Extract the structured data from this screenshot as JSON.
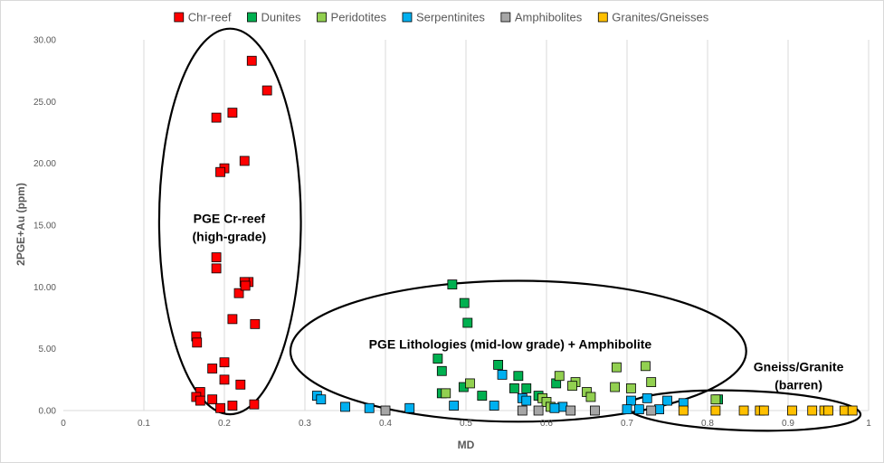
{
  "chart_data": {
    "type": "scatter",
    "title": "",
    "xlabel": "MD",
    "ylabel": "2PGE+Au (ppm)",
    "xlim": [
      0,
      1
    ],
    "ylim": [
      0,
      30
    ],
    "x_ticks": [
      "0",
      "0.1",
      "0.2",
      "0.3",
      "0.4",
      "0.5",
      "0.6",
      "0.7",
      "0.8",
      "0.9",
      "1"
    ],
    "y_ticks": [
      "0.00",
      "5.00",
      "10.00",
      "15.00",
      "20.00",
      "25.00",
      "30.00"
    ],
    "grid": "vertical",
    "legend_position": "top",
    "marker": "square",
    "series": [
      {
        "name": "Chr-reef",
        "color": "#ff0000",
        "x": [
          0.234,
          0.253,
          0.21,
          0.19,
          0.225,
          0.2,
          0.195,
          0.19,
          0.19,
          0.23,
          0.225,
          0.218,
          0.226,
          0.21,
          0.238,
          0.165,
          0.166,
          0.2,
          0.185,
          0.2,
          0.22,
          0.17,
          0.165,
          0.17,
          0.185,
          0.195,
          0.21,
          0.237
        ],
        "y": [
          28.3,
          25.9,
          24.1,
          23.7,
          20.2,
          19.6,
          19.3,
          12.4,
          11.5,
          10.4,
          10.4,
          9.5,
          10.1,
          7.4,
          7.0,
          6.0,
          5.5,
          3.9,
          3.4,
          2.5,
          2.1,
          1.5,
          1.1,
          0.8,
          0.9,
          0.2,
          0.4,
          0.5
        ]
      },
      {
        "name": "Dunites",
        "color": "#00b050",
        "x": [
          0.483,
          0.498,
          0.502,
          0.465,
          0.47,
          0.54,
          0.565,
          0.497,
          0.56,
          0.575,
          0.47,
          0.52,
          0.59,
          0.612,
          0.813
        ],
        "y": [
          10.2,
          8.7,
          7.1,
          4.2,
          3.2,
          3.7,
          2.8,
          1.9,
          1.8,
          1.8,
          1.4,
          1.2,
          1.2,
          2.2,
          0.9
        ]
      },
      {
        "name": "Peridotites",
        "color": "#92d050",
        "x": [
          0.687,
          0.723,
          0.616,
          0.73,
          0.636,
          0.505,
          0.632,
          0.705,
          0.685,
          0.65,
          0.655,
          0.475,
          0.595,
          0.6,
          0.605,
          0.81
        ],
        "y": [
          3.5,
          3.6,
          2.8,
          2.3,
          2.3,
          2.2,
          2.0,
          1.8,
          1.9,
          1.5,
          1.1,
          1.4,
          1.0,
          0.7,
          0.3,
          0.9
        ]
      },
      {
        "name": "Serpentinites",
        "color": "#00b0f0",
        "x": [
          0.315,
          0.32,
          0.35,
          0.38,
          0.43,
          0.485,
          0.535,
          0.545,
          0.57,
          0.575,
          0.62,
          0.705,
          0.725,
          0.75,
          0.77,
          0.61,
          0.7,
          0.715,
          0.74
        ],
        "y": [
          1.2,
          0.9,
          0.3,
          0.2,
          0.2,
          0.4,
          0.4,
          2.9,
          1.0,
          0.8,
          0.3,
          0.8,
          1.0,
          0.8,
          0.6,
          0.2,
          0.1,
          0.1,
          0.1
        ]
      },
      {
        "name": "Amphibolites",
        "color": "#a6a6a6",
        "x": [
          0.4,
          0.57,
          0.59,
          0.63,
          0.66,
          0.73
        ],
        "y": [
          0.0,
          0.0,
          0.0,
          0.0,
          0.0,
          0.0
        ]
      },
      {
        "name": "Granites/Gneisses",
        "color": "#ffc000",
        "x": [
          0.77,
          0.81,
          0.845,
          0.865,
          0.87,
          0.905,
          0.93,
          0.945,
          0.95,
          0.97,
          0.98
        ],
        "y": [
          0.0,
          0.0,
          0.0,
          0.0,
          0.0,
          0.0,
          0.0,
          0.0,
          0.0,
          0.0,
          0.0
        ]
      }
    ],
    "annotations": [
      {
        "text": [
          "PGE Cr-reef",
          "(high-grade)"
        ],
        "x": 0.206,
        "y": 15.2
      },
      {
        "text": [
          "PGE Lithologies (mid-low grade) + Amphibolite"
        ],
        "x": 0.555,
        "y": 5.0
      },
      {
        "text": [
          "Gneiss/Granite",
          "(barren)"
        ],
        "x": 0.913,
        "y": 3.2
      }
    ],
    "ellipses": [
      {
        "cx": 0.207,
        "cy": 15.3,
        "rx_data": 0.088,
        "ry_data": 15.6
      },
      {
        "cx": 0.565,
        "cy": 4.8,
        "rx_data": 0.283,
        "ry_data": 5.7
      },
      {
        "cx": 0.845,
        "cy": 0.0,
        "rx_data": 0.145,
        "ry_data": 1.6,
        "rotate_deg": 2
      }
    ]
  }
}
